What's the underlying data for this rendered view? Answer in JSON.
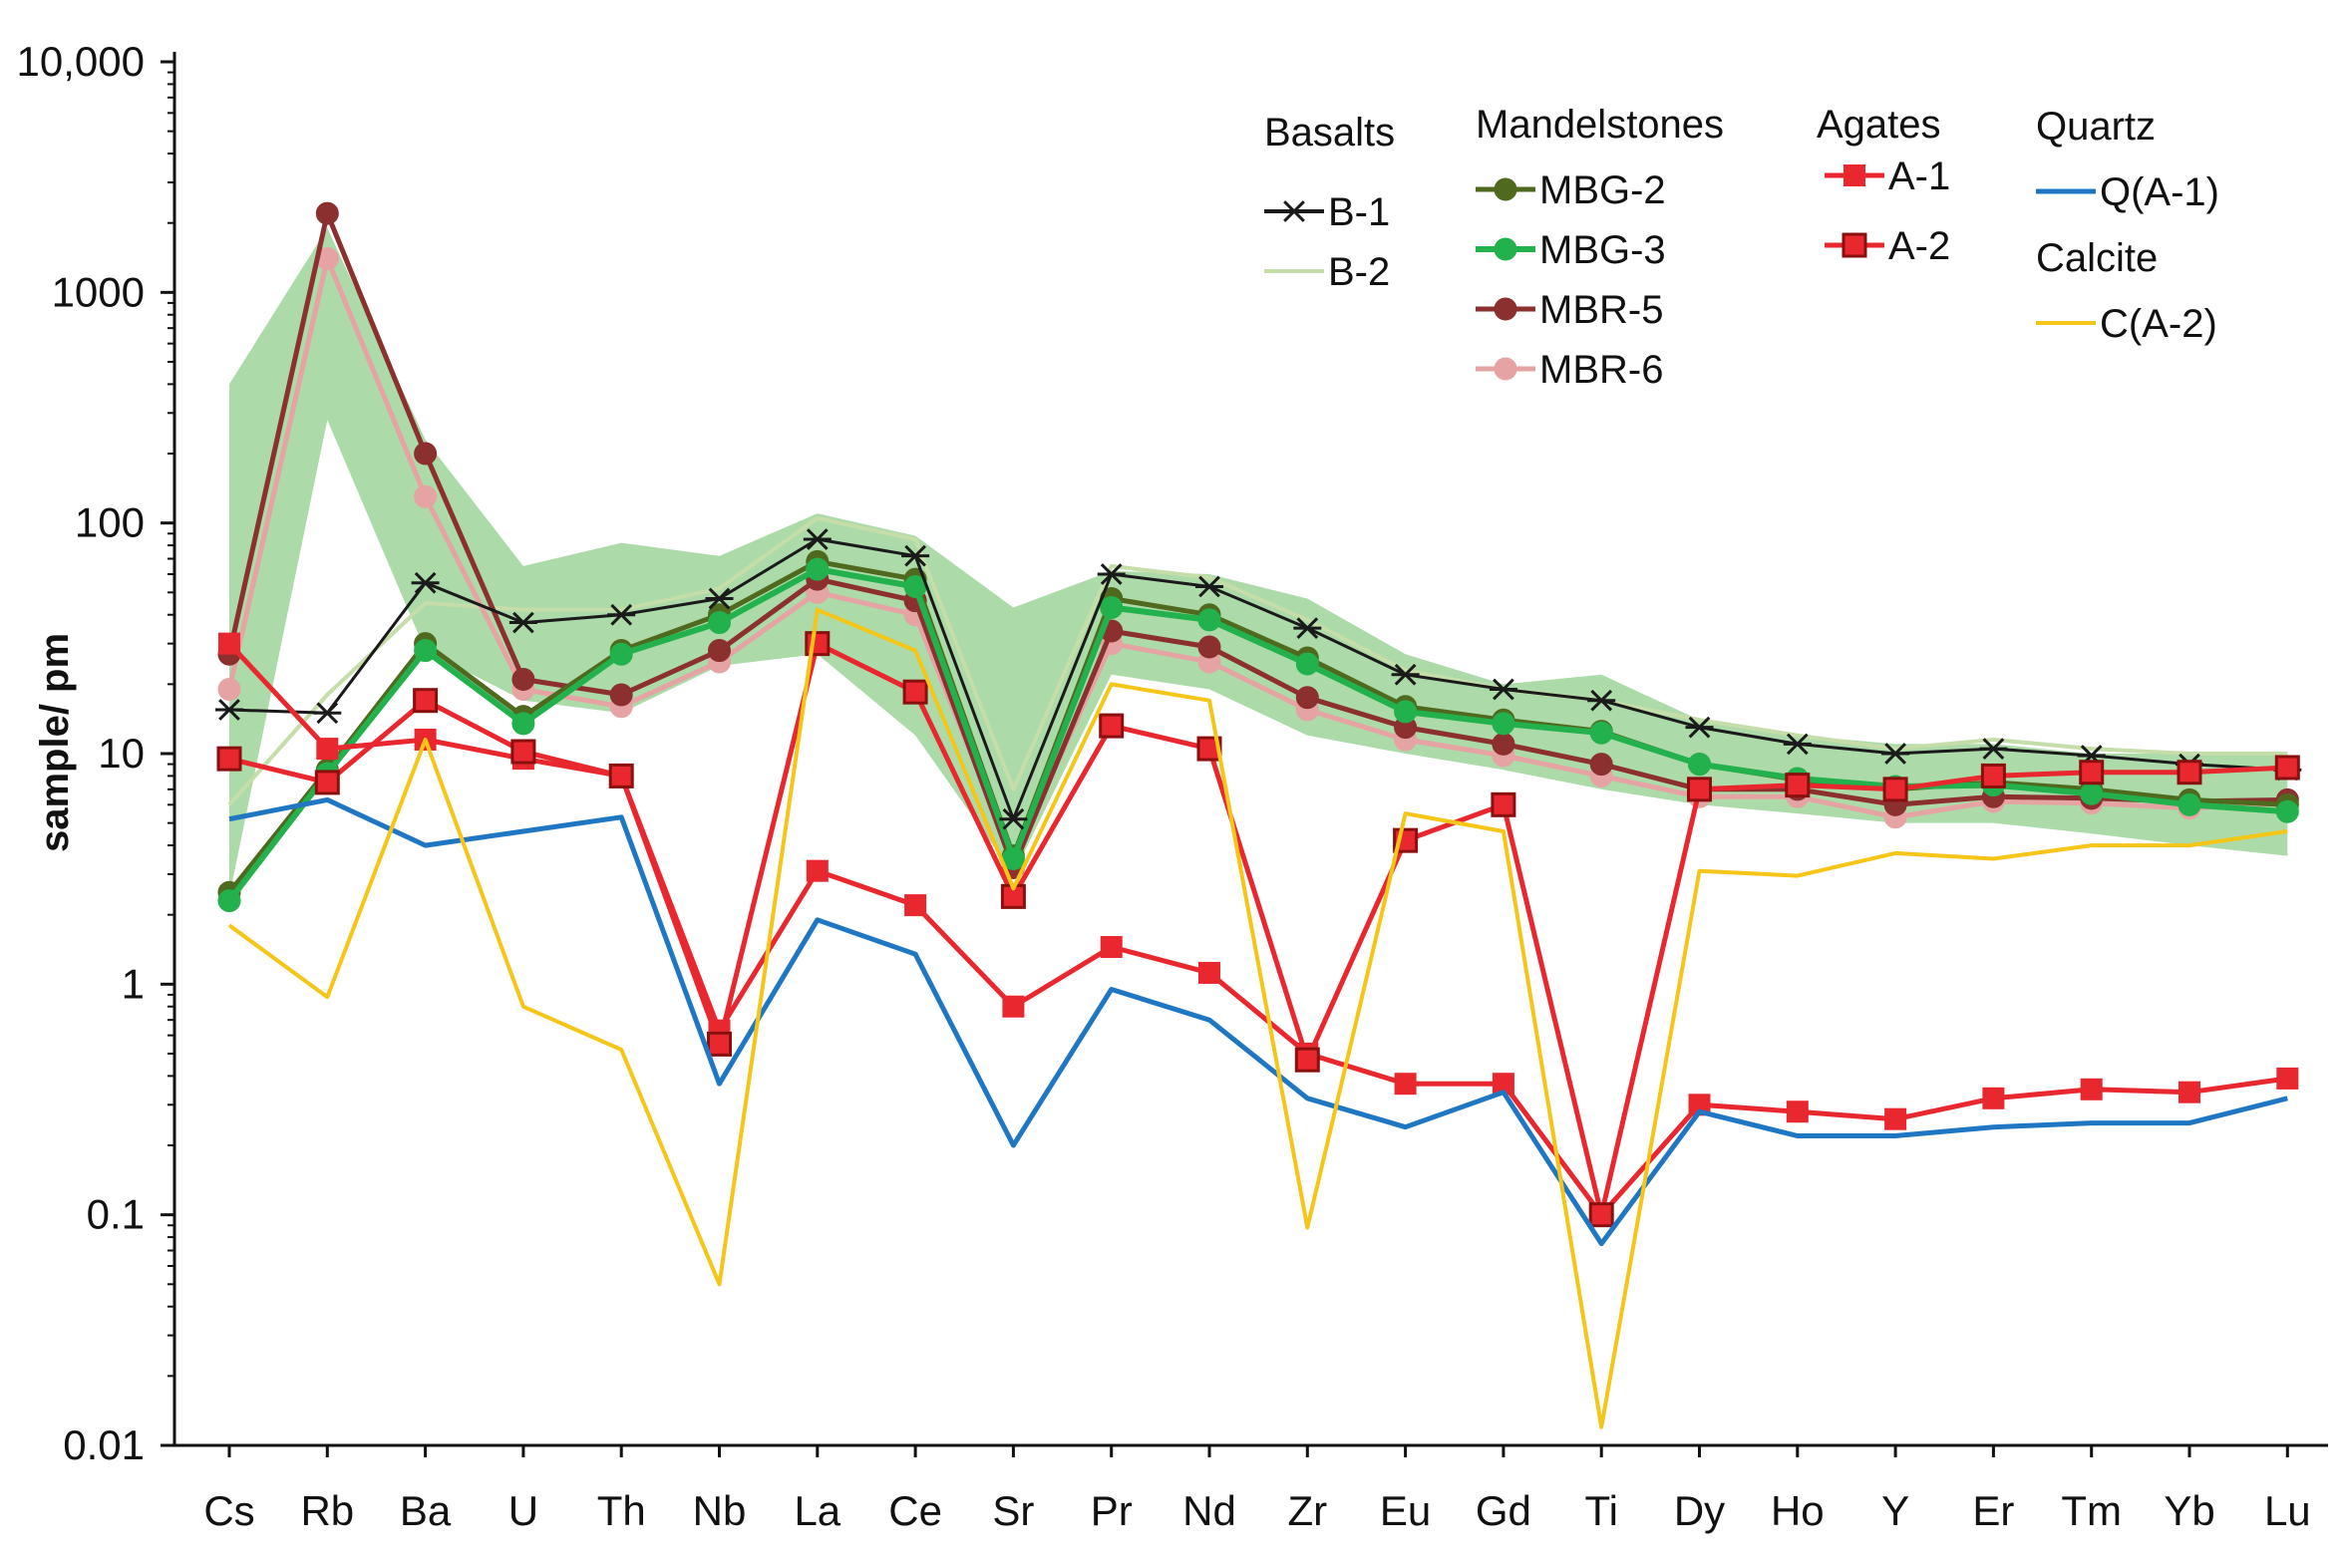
{
  "chart_data": {
    "type": "line",
    "title": "",
    "xlabel": "",
    "ylabel": "sample/ pm",
    "yscale": "log",
    "ylim": [
      0.01,
      10000
    ],
    "yticks": [
      {
        "value": 0.01,
        "label": "0.01"
      },
      {
        "value": 0.1,
        "label": "0.1"
      },
      {
        "value": 1,
        "label": "1"
      },
      {
        "value": 10,
        "label": "10"
      },
      {
        "value": 100,
        "label": "100"
      },
      {
        "value": 1000,
        "label": "1000"
      },
      {
        "value": 10000,
        "label": "10,000"
      }
    ],
    "categories": [
      "Cs",
      "Rb",
      "Ba",
      "U",
      "Th",
      "Nb",
      "La",
      "Ce",
      "Sr",
      "Pr",
      "Nd",
      "Zr",
      "Eu",
      "Gd",
      "Ti",
      "Dy",
      "Ho",
      "Y",
      "Er",
      "Tm",
      "Yb",
      "Lu"
    ],
    "band": {
      "name": "Mandelstones range",
      "color": "#9ed49a",
      "upper": [
        400,
        1900,
        230,
        65,
        82,
        72,
        110,
        88,
        43,
        62,
        60,
        47,
        27,
        20,
        22,
        14,
        12,
        11,
        11,
        10,
        10,
        10
      ],
      "lower": [
        2.4,
        280,
        28,
        17,
        15,
        24,
        27,
        12,
        3,
        22,
        19,
        12,
        10,
        8.5,
        7,
        6,
        5.5,
        5,
        5,
        4.5,
        4,
        3.6
      ]
    },
    "legend_groups": [
      {
        "header": "Basalts",
        "items": [
          "B-1",
          "B-2"
        ]
      },
      {
        "header": "Mandelstones",
        "items": [
          "MBG-2",
          "MBG-3",
          "MBR-5",
          "MBR-6"
        ]
      },
      {
        "header": "Agates",
        "items": [
          "A-1",
          "A-2"
        ]
      },
      {
        "header": "Quartz",
        "items": [
          "Q(A-1)"
        ]
      },
      {
        "header": "Calcite",
        "items": [
          "C(A-2)"
        ]
      }
    ],
    "series": [
      {
        "name": "B-2",
        "color": "#c5dda8",
        "marker": "none",
        "width": 4,
        "values": [
          6,
          18,
          45,
          42,
          42,
          52,
          105,
          85,
          7,
          65,
          58,
          38,
          23,
          19,
          17,
          14,
          12,
          10.5,
          11.5,
          10.5,
          10,
          10
        ]
      },
      {
        "name": "MBR-6",
        "color": "#e6a3a3",
        "marker": "circle",
        "width": 5,
        "values": [
          19,
          1400,
          130,
          19,
          16,
          25,
          50,
          40,
          3.5,
          30,
          25,
          15.5,
          11.5,
          9.8,
          8,
          6.5,
          6.5,
          5.3,
          6.2,
          6.1,
          5.8,
          6.1
        ]
      },
      {
        "name": "MBR-5",
        "color": "#8b2f2f",
        "marker": "circle",
        "width": 5,
        "values": [
          27,
          2200,
          200,
          21,
          18,
          28,
          57,
          46,
          3.2,
          34,
          29,
          17.5,
          13,
          11,
          9,
          7,
          7,
          6,
          6.5,
          6.4,
          6.2,
          6.3
        ]
      },
      {
        "name": "MBG-2",
        "color": "#4f6a1e",
        "marker": "circle",
        "width": 5,
        "values": [
          2.5,
          8.5,
          30,
          14.5,
          28,
          40,
          68,
          57,
          3.6,
          47,
          40,
          26,
          16,
          14,
          12.5,
          9,
          7.7,
          7,
          7.5,
          7,
          6.3,
          6
        ]
      },
      {
        "name": "MBG-3",
        "color": "#22b14c",
        "marker": "circle",
        "width": 6,
        "values": [
          2.3,
          8.2,
          28,
          13.5,
          27,
          37,
          63,
          53,
          3.5,
          43,
          38,
          24.5,
          15.2,
          13.5,
          12.3,
          9,
          7.8,
          7.2,
          7.3,
          6.7,
          6,
          5.6
        ]
      },
      {
        "name": "B-1",
        "color": "#1a1a1a",
        "marker": "star",
        "width": 3,
        "values": [
          15.5,
          15,
          55,
          37,
          40,
          47,
          85,
          72,
          5.2,
          60,
          53,
          35,
          22,
          19,
          17,
          13,
          11,
          10,
          10.5,
          9.8,
          9,
          8.5
        ]
      },
      {
        "name": "A-1",
        "color": "#e8282e",
        "marker": "square",
        "width": 5,
        "values": [
          30,
          10.5,
          11.5,
          9.5,
          8,
          0.63,
          3.1,
          2.2,
          0.8,
          1.45,
          1.12,
          0.5,
          0.37,
          0.37,
          0.1,
          0.3,
          0.28,
          0.26,
          0.32,
          0.35,
          0.34,
          0.39
        ]
      },
      {
        "name": "A-2",
        "color": "#e8282e",
        "marker": "square-dark",
        "width": 5,
        "values": [
          9.5,
          7.5,
          17,
          10.2,
          8,
          0.55,
          30,
          18.5,
          2.4,
          13.2,
          10.5,
          0.47,
          4.2,
          6,
          0.1,
          7,
          7.3,
          7,
          8,
          8.3,
          8.3,
          8.7
        ]
      },
      {
        "name": "Q(A-1)",
        "color": "#1f77c4",
        "marker": "none",
        "width": 5,
        "values": [
          5.2,
          6.3,
          4,
          4.6,
          5.3,
          0.37,
          1.9,
          1.35,
          0.2,
          0.95,
          0.7,
          0.32,
          0.24,
          0.34,
          0.075,
          0.28,
          0.22,
          0.22,
          0.24,
          0.25,
          0.25,
          0.32
        ]
      },
      {
        "name": "C(A-2)",
        "color": "#f5c518",
        "marker": "none",
        "width": 4,
        "values": [
          1.8,
          0.88,
          11.5,
          0.8,
          0.52,
          0.05,
          42,
          28,
          2.6,
          20,
          17,
          0.088,
          5.5,
          4.6,
          0.012,
          3.1,
          2.95,
          3.7,
          3.5,
          4,
          4,
          4.6
        ]
      }
    ]
  }
}
